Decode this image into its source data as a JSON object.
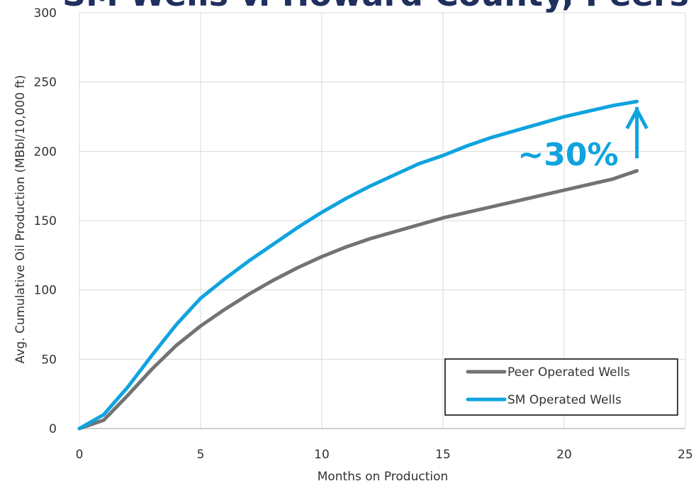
{
  "chart_data": {
    "type": "line",
    "title": "SM Wells v. Howard County, Peers",
    "xlabel": "Months on Production",
    "ylabel": "Avg. Cumulative Oil Production (MBbl/10,000 ft)",
    "xlim": [
      0,
      25
    ],
    "ylim": [
      0,
      300
    ],
    "xticks": [
      0,
      5,
      10,
      15,
      20,
      25
    ],
    "yticks": [
      0,
      50,
      100,
      150,
      200,
      250,
      300
    ],
    "grid": true,
    "legend_position": "bottom-right",
    "series": [
      {
        "name": "Peer Operated Wells",
        "color": "#737373",
        "x": [
          0,
          1,
          2,
          3,
          4,
          5,
          6,
          7,
          8,
          9,
          10,
          11,
          12,
          13,
          14,
          15,
          16,
          17,
          18,
          19,
          20,
          21,
          22,
          23
        ],
        "y": [
          0,
          6,
          24,
          43,
          60,
          74,
          86,
          97,
          107,
          116,
          124,
          131,
          137,
          142,
          147,
          152,
          156,
          160,
          164,
          168,
          172,
          176,
          180,
          186
        ]
      },
      {
        "name": "SM Operated Wells",
        "color": "#0fa3df",
        "x": [
          0,
          1,
          2,
          3,
          4,
          5,
          6,
          7,
          8,
          9,
          10,
          11,
          12,
          13,
          14,
          15,
          16,
          17,
          18,
          19,
          20,
          21,
          22,
          23
        ],
        "y": [
          0,
          10,
          30,
          53,
          75,
          94,
          108,
          121,
          133,
          145,
          156,
          166,
          175,
          183,
          191,
          197,
          204,
          210,
          215,
          220,
          225,
          229,
          233,
          236
        ]
      }
    ],
    "annotation": {
      "text": "~30%",
      "color": "#0fa3df",
      "arrow_x": 23,
      "arrow_from_y": 195,
      "arrow_to_y": 236
    }
  }
}
